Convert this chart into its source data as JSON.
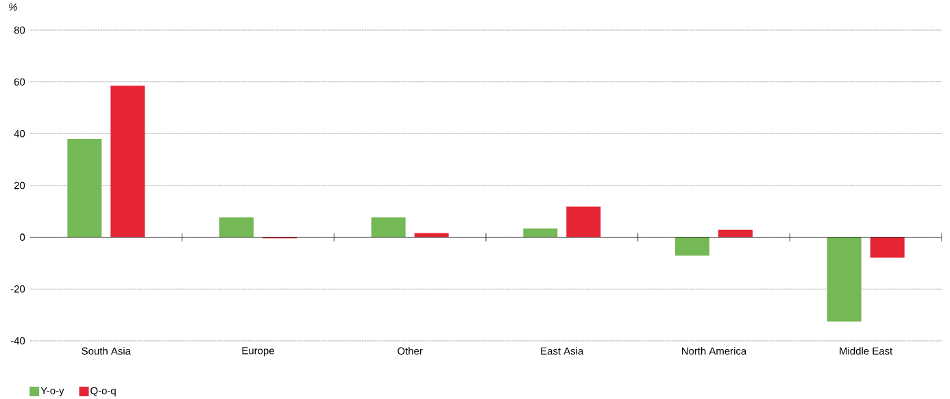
{
  "chart_data": {
    "type": "bar",
    "ylabel": "%",
    "categories": [
      "South Asia",
      "Europe",
      "Other",
      "East Asia",
      "North America",
      "Middle East"
    ],
    "series": [
      {
        "name": "Y-o-y",
        "color": "#75b856",
        "values": [
          38,
          7.7,
          7.7,
          3.4,
          -7.1,
          -32.5
        ]
      },
      {
        "name": "Q-o-q",
        "color": "#e52533",
        "values": [
          58.5,
          -0.4,
          1.6,
          11.9,
          2.9,
          -7.9
        ]
      }
    ],
    "ylim": [
      -40,
      80
    ],
    "yticks": [
      -40,
      -20,
      0,
      20,
      40,
      60,
      80
    ],
    "grid": "y",
    "legend": "bottom left"
  }
}
